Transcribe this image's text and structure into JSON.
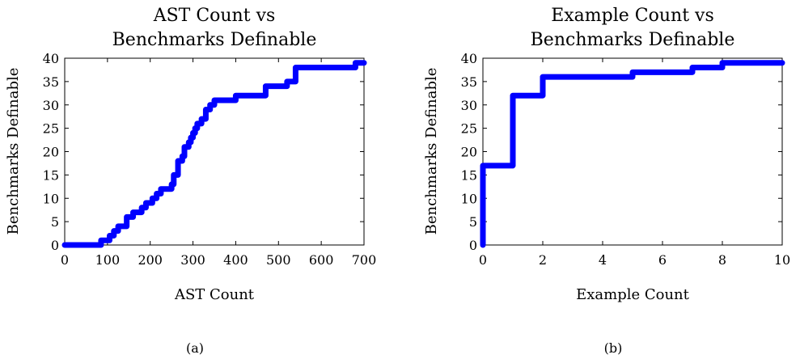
{
  "chart_data": [
    {
      "type": "line",
      "drawstyle": "steps-post",
      "title_lines": [
        "AST Count vs",
        "Benchmarks Definable"
      ],
      "xlabel": "AST Count",
      "ylabel": "Benchmarks Definable",
      "xlim": [
        0,
        700
      ],
      "ylim": [
        0,
        40
      ],
      "xticks": [
        0,
        100,
        200,
        300,
        400,
        500,
        600,
        700
      ],
      "yticks": [
        0,
        5,
        10,
        15,
        20,
        25,
        30,
        35,
        40
      ],
      "grid": false,
      "color": "#0000ff",
      "caption": "(a)",
      "series": [
        {
          "x": [
            0,
            85,
            105,
            115,
            125,
            145,
            150,
            160,
            180,
            190,
            200,
            205,
            215,
            225,
            235,
            240,
            250,
            255,
            265,
            270,
            275,
            280,
            290,
            295,
            300,
            305,
            310,
            320,
            330,
            340,
            345,
            350,
            370,
            400,
            470,
            490,
            520,
            540,
            680,
            690,
            700
          ],
          "y": [
            0,
            1,
            2,
            3,
            4,
            6,
            6,
            7,
            8,
            9,
            9,
            10,
            11,
            12,
            12,
            12,
            13,
            15,
            18,
            18,
            19,
            21,
            22,
            23,
            24,
            25,
            26,
            27,
            29,
            30,
            30,
            31,
            31,
            32,
            34,
            34,
            35,
            38,
            39,
            39,
            39
          ]
        }
      ]
    },
    {
      "type": "line",
      "drawstyle": "steps-post",
      "title_lines": [
        "Example Count vs",
        "Benchmarks Definable"
      ],
      "xlabel": "Example Count",
      "ylabel": "Benchmarks Definable",
      "xlim": [
        0,
        10
      ],
      "ylim": [
        0,
        40
      ],
      "xticks": [
        0,
        2,
        4,
        6,
        8,
        10
      ],
      "yticks": [
        0,
        5,
        10,
        15,
        20,
        25,
        30,
        35,
        40
      ],
      "grid": false,
      "color": "#0000ff",
      "caption": "(b)",
      "series": [
        {
          "x": [
            0,
            0,
            1,
            2,
            5,
            7,
            8,
            10
          ],
          "y": [
            0,
            17,
            32,
            36,
            37,
            38,
            39,
            39
          ]
        }
      ]
    }
  ]
}
